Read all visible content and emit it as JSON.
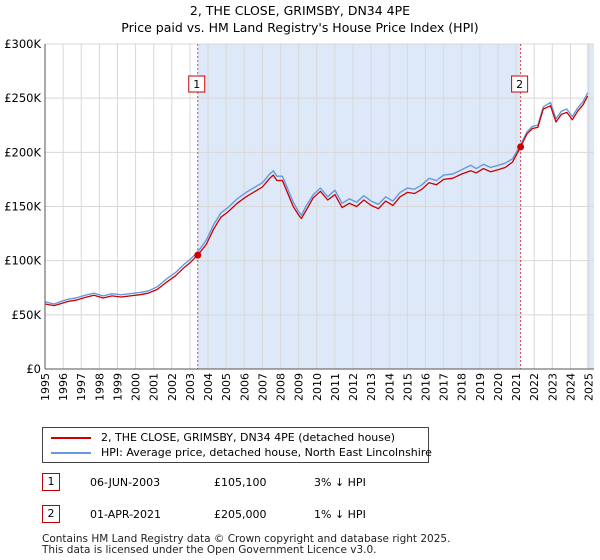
{
  "title": {
    "line1": "2, THE CLOSE, GRIMSBY, DN34 4PE",
    "line2": "Price paid vs. HM Land Registry's House Price Index (HPI)"
  },
  "colors": {
    "property": "#cc0000",
    "hpi": "#6699dd",
    "shade": "#dde8f8",
    "vline": "#dd4444",
    "grid": "#d8d8d8"
  },
  "chart_data": {
    "type": "line",
    "xlim": [
      1995,
      2025.3
    ],
    "ylim": [
      0,
      300000
    ],
    "y_ticks": [
      {
        "value": 0,
        "label": "£0"
      },
      {
        "value": 50000,
        "label": "£50K"
      },
      {
        "value": 100000,
        "label": "£100K"
      },
      {
        "value": 150000,
        "label": "£150K"
      },
      {
        "value": 200000,
        "label": "£200K"
      },
      {
        "value": 250000,
        "label": "£250K"
      },
      {
        "value": 300000,
        "label": "£300K"
      }
    ],
    "x_ticks": [
      "1995",
      "1996",
      "1997",
      "1998",
      "1999",
      "2000",
      "2001",
      "2002",
      "2003",
      "2004",
      "2005",
      "2006",
      "2007",
      "2008",
      "2009",
      "2010",
      "2011",
      "2012",
      "2013",
      "2014",
      "2015",
      "2016",
      "2017",
      "2018",
      "2019",
      "2020",
      "2021",
      "2022",
      "2023",
      "2024",
      "2025"
    ],
    "shaded_ranges": [
      [
        2003.43,
        2021.25
      ],
      [
        2024.9,
        2025.3
      ]
    ],
    "series": [
      {
        "name": "2, THE CLOSE, GRIMSBY, DN34 4PE (detached house)",
        "key": "property",
        "x": [
          1995.0,
          1995.5,
          1995.9,
          1996.3,
          1996.7,
          1997.2,
          1997.7,
          1998.2,
          1998.7,
          1999.2,
          1999.7,
          2000.2,
          2000.7,
          2001.2,
          2001.7,
          2002.2,
          2002.7,
          2003.0,
          2003.43,
          2003.9,
          2004.3,
          2004.7,
          2005.1,
          2005.6,
          2006.1,
          2006.6,
          2007.0,
          2007.4,
          2007.6,
          2007.8,
          2008.1,
          2008.4,
          2008.7,
          2009.0,
          2009.15,
          2009.4,
          2009.8,
          2010.2,
          2010.6,
          2011.0,
          2011.4,
          2011.8,
          2012.2,
          2012.6,
          2013.0,
          2013.4,
          2013.8,
          2014.2,
          2014.6,
          2015.0,
          2015.4,
          2015.8,
          2016.2,
          2016.6,
          2017.0,
          2017.5,
          2018.0,
          2018.5,
          2018.8,
          2019.2,
          2019.6,
          2020.0,
          2020.4,
          2020.8,
          2021.25,
          2021.6,
          2021.9,
          2022.2,
          2022.5,
          2022.9,
          2023.2,
          2023.5,
          2023.8,
          2024.1,
          2024.4,
          2024.7,
          2024.95
        ],
        "y": [
          60000,
          58500,
          60500,
          62500,
          63500,
          66000,
          68000,
          65500,
          67500,
          66500,
          67500,
          68500,
          70000,
          73500,
          80000,
          86000,
          94000,
          98000,
          105100,
          115000,
          129000,
          140000,
          145000,
          153000,
          159000,
          164000,
          168000,
          176000,
          179000,
          174000,
          174000,
          162000,
          150000,
          142000,
          139000,
          146000,
          158000,
          164000,
          156000,
          161000,
          149000,
          153000,
          150000,
          156000,
          151000,
          148000,
          155000,
          151000,
          159000,
          163000,
          162000,
          166000,
          172000,
          170000,
          175000,
          176000,
          180000,
          183000,
          181000,
          185000,
          182000,
          184000,
          186000,
          191000,
          205000,
          217000,
          222000,
          223000,
          240000,
          243000,
          228000,
          235000,
          237000,
          230000,
          238000,
          244000,
          252000
        ]
      },
      {
        "name": "HPI: Average price, detached house, North East Lincolnshire",
        "key": "hpi",
        "x": [
          1995.0,
          1995.5,
          1995.9,
          1996.3,
          1996.7,
          1997.2,
          1997.7,
          1998.2,
          1998.7,
          1999.2,
          1999.7,
          2000.2,
          2000.7,
          2001.2,
          2001.7,
          2002.2,
          2002.7,
          2003.0,
          2003.43,
          2003.9,
          2004.3,
          2004.7,
          2005.1,
          2005.6,
          2006.1,
          2006.6,
          2007.0,
          2007.4,
          2007.6,
          2007.8,
          2008.1,
          2008.4,
          2008.7,
          2009.0,
          2009.15,
          2009.4,
          2009.8,
          2010.2,
          2010.6,
          2011.0,
          2011.4,
          2011.8,
          2012.2,
          2012.6,
          2013.0,
          2013.4,
          2013.8,
          2014.2,
          2014.6,
          2015.0,
          2015.4,
          2015.8,
          2016.2,
          2016.6,
          2017.0,
          2017.5,
          2018.0,
          2018.5,
          2018.8,
          2019.2,
          2019.6,
          2020.0,
          2020.4,
          2020.8,
          2021.25,
          2021.6,
          2021.9,
          2022.2,
          2022.5,
          2022.9,
          2023.2,
          2023.5,
          2023.8,
          2024.1,
          2024.4,
          2024.7,
          2024.95
        ],
        "y": [
          62000,
          60000,
          62500,
          64500,
          65500,
          68000,
          70000,
          67500,
          69500,
          68500,
          69500,
          70500,
          72000,
          76000,
          83000,
          89000,
          97000,
          101000,
          108000,
          119000,
          133000,
          144000,
          149000,
          157000,
          163000,
          168000,
          172000,
          180000,
          183000,
          178000,
          178000,
          166000,
          154000,
          145000,
          142000,
          150000,
          161000,
          167000,
          159000,
          165000,
          153000,
          157000,
          154000,
          160000,
          155000,
          152000,
          159000,
          155000,
          163000,
          167000,
          166000,
          170000,
          176000,
          174000,
          179000,
          180000,
          184000,
          188000,
          185000,
          189000,
          186000,
          188000,
          190000,
          194000,
          207000,
          219000,
          224000,
          225000,
          242000,
          246000,
          231000,
          238000,
          240000,
          233000,
          241000,
          247000,
          255000
        ]
      }
    ],
    "markers": [
      {
        "label": "1",
        "x": 2003.43,
        "y": 105100
      },
      {
        "label": "2",
        "x": 2021.25,
        "y": 205000
      }
    ]
  },
  "legend": {
    "property_label": "2, THE CLOSE, GRIMSBY, DN34 4PE (detached house)",
    "hpi_label": "HPI: Average price, detached house, North East Lincolnshire"
  },
  "sales": [
    {
      "num": "1",
      "date": "06-JUN-2003",
      "price": "£105,100",
      "hpi": "3% ↓ HPI"
    },
    {
      "num": "2",
      "date": "01-APR-2021",
      "price": "£205,000",
      "hpi": "1% ↓ HPI"
    }
  ],
  "footer": {
    "line1": "Contains HM Land Registry data © Crown copyright and database right 2025.",
    "line2": "This data is licensed under the Open Government Licence v3.0."
  }
}
